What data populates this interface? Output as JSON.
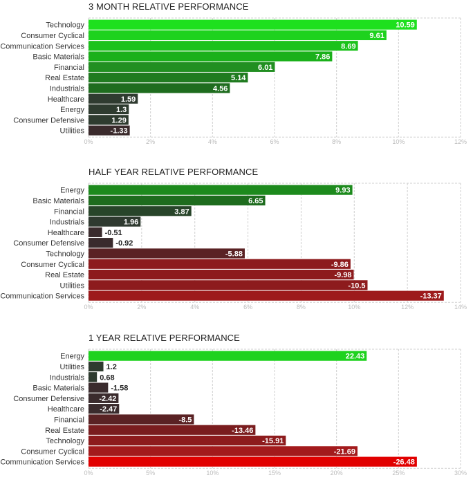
{
  "chart_data": [
    {
      "type": "bar",
      "orientation": "horizontal",
      "title": "3 MONTH RELATIVE PERFORMANCE",
      "categories": [
        "Technology",
        "Consumer Cyclical",
        "Communication Services",
        "Basic Materials",
        "Financial",
        "Real Estate",
        "Industrials",
        "Healthcare",
        "Energy",
        "Consumer Defensive",
        "Utilities"
      ],
      "values": [
        10.59,
        9.61,
        8.69,
        7.86,
        6.01,
        5.14,
        4.56,
        1.59,
        1.3,
        1.29,
        -1.33
      ],
      "value_labels": [
        "10.59",
        "9.61",
        "8.69",
        "7.86",
        "6.01",
        "5.14",
        "4.56",
        "1.59",
        "1.3",
        "1.29",
        "-1.33"
      ],
      "bar_colors": [
        "#1ee01e",
        "#1ed21e",
        "#1bc21b",
        "#1ab01a",
        "#218f21",
        "#207b20",
        "#1e6c1e",
        "#2f3b30",
        "#2e3b2f",
        "#2e3b2f",
        "#3a2a2c"
      ],
      "xlim": [
        0,
        12
      ],
      "xticks": [
        "0%",
        "2%",
        "4%",
        "6%",
        "8%",
        "10%",
        "12%"
      ]
    },
    {
      "type": "bar",
      "orientation": "horizontal",
      "title": "HALF YEAR RELATIVE PERFORMANCE",
      "categories": [
        "Energy",
        "Basic Materials",
        "Financial",
        "Industrials",
        "Healthcare",
        "Consumer Defensive",
        "Technology",
        "Consumer Cyclical",
        "Real Estate",
        "Utilities",
        "Communication Services"
      ],
      "values": [
        9.93,
        6.65,
        3.87,
        1.96,
        -0.51,
        -0.92,
        -5.88,
        -9.86,
        -9.98,
        -10.5,
        -13.37
      ],
      "value_labels": [
        "9.93",
        "6.65",
        "3.87",
        "1.96",
        "-0.51",
        "-0.92",
        "-5.88",
        "-9.86",
        "-9.98",
        "-10.5",
        "-13.37"
      ],
      "bar_colors": [
        "#1d8a1d",
        "#1e6c1e",
        "#28452a",
        "#2f3a30",
        "#3a2b2d",
        "#3a2b2d",
        "#5a2224",
        "#8d1b1d",
        "#8d1b1d",
        "#8d1b1d",
        "#9d1a1c"
      ],
      "xlim": [
        0,
        14
      ],
      "xticks": [
        "0%",
        "2%",
        "4%",
        "6%",
        "8%",
        "10%",
        "12%",
        "14%"
      ]
    },
    {
      "type": "bar",
      "orientation": "horizontal",
      "title": "1 YEAR RELATIVE PERFORMANCE",
      "categories": [
        "Energy",
        "Utilities",
        "Industrials",
        "Basic Materials",
        "Consumer Defensive",
        "Healthcare",
        "Financial",
        "Real Estate",
        "Technology",
        "Consumer Cyclical",
        "Communication Services"
      ],
      "values": [
        22.43,
        1.2,
        0.68,
        -1.58,
        -2.42,
        -2.47,
        -8.5,
        -13.46,
        -15.91,
        -21.69,
        -26.48
      ],
      "value_labels": [
        "22.43",
        "1.2",
        "0.68",
        "-1.58",
        "-2.42",
        "-2.47",
        "-8.5",
        "-13.46",
        "-15.91",
        "-21.69",
        "-26.48"
      ],
      "bar_colors": [
        "#1ed21e",
        "#2e3b2f",
        "#2e3b2f",
        "#3a2b2d",
        "#3a2b2d",
        "#3a2b2d",
        "#5a2224",
        "#7a1d1f",
        "#8d1b1d",
        "#a31a1c",
        "#e10000"
      ],
      "xlim": [
        0,
        30
      ],
      "xticks": [
        "0%",
        "5%",
        "10%",
        "15%",
        "20%",
        "25%",
        "30%"
      ]
    }
  ]
}
